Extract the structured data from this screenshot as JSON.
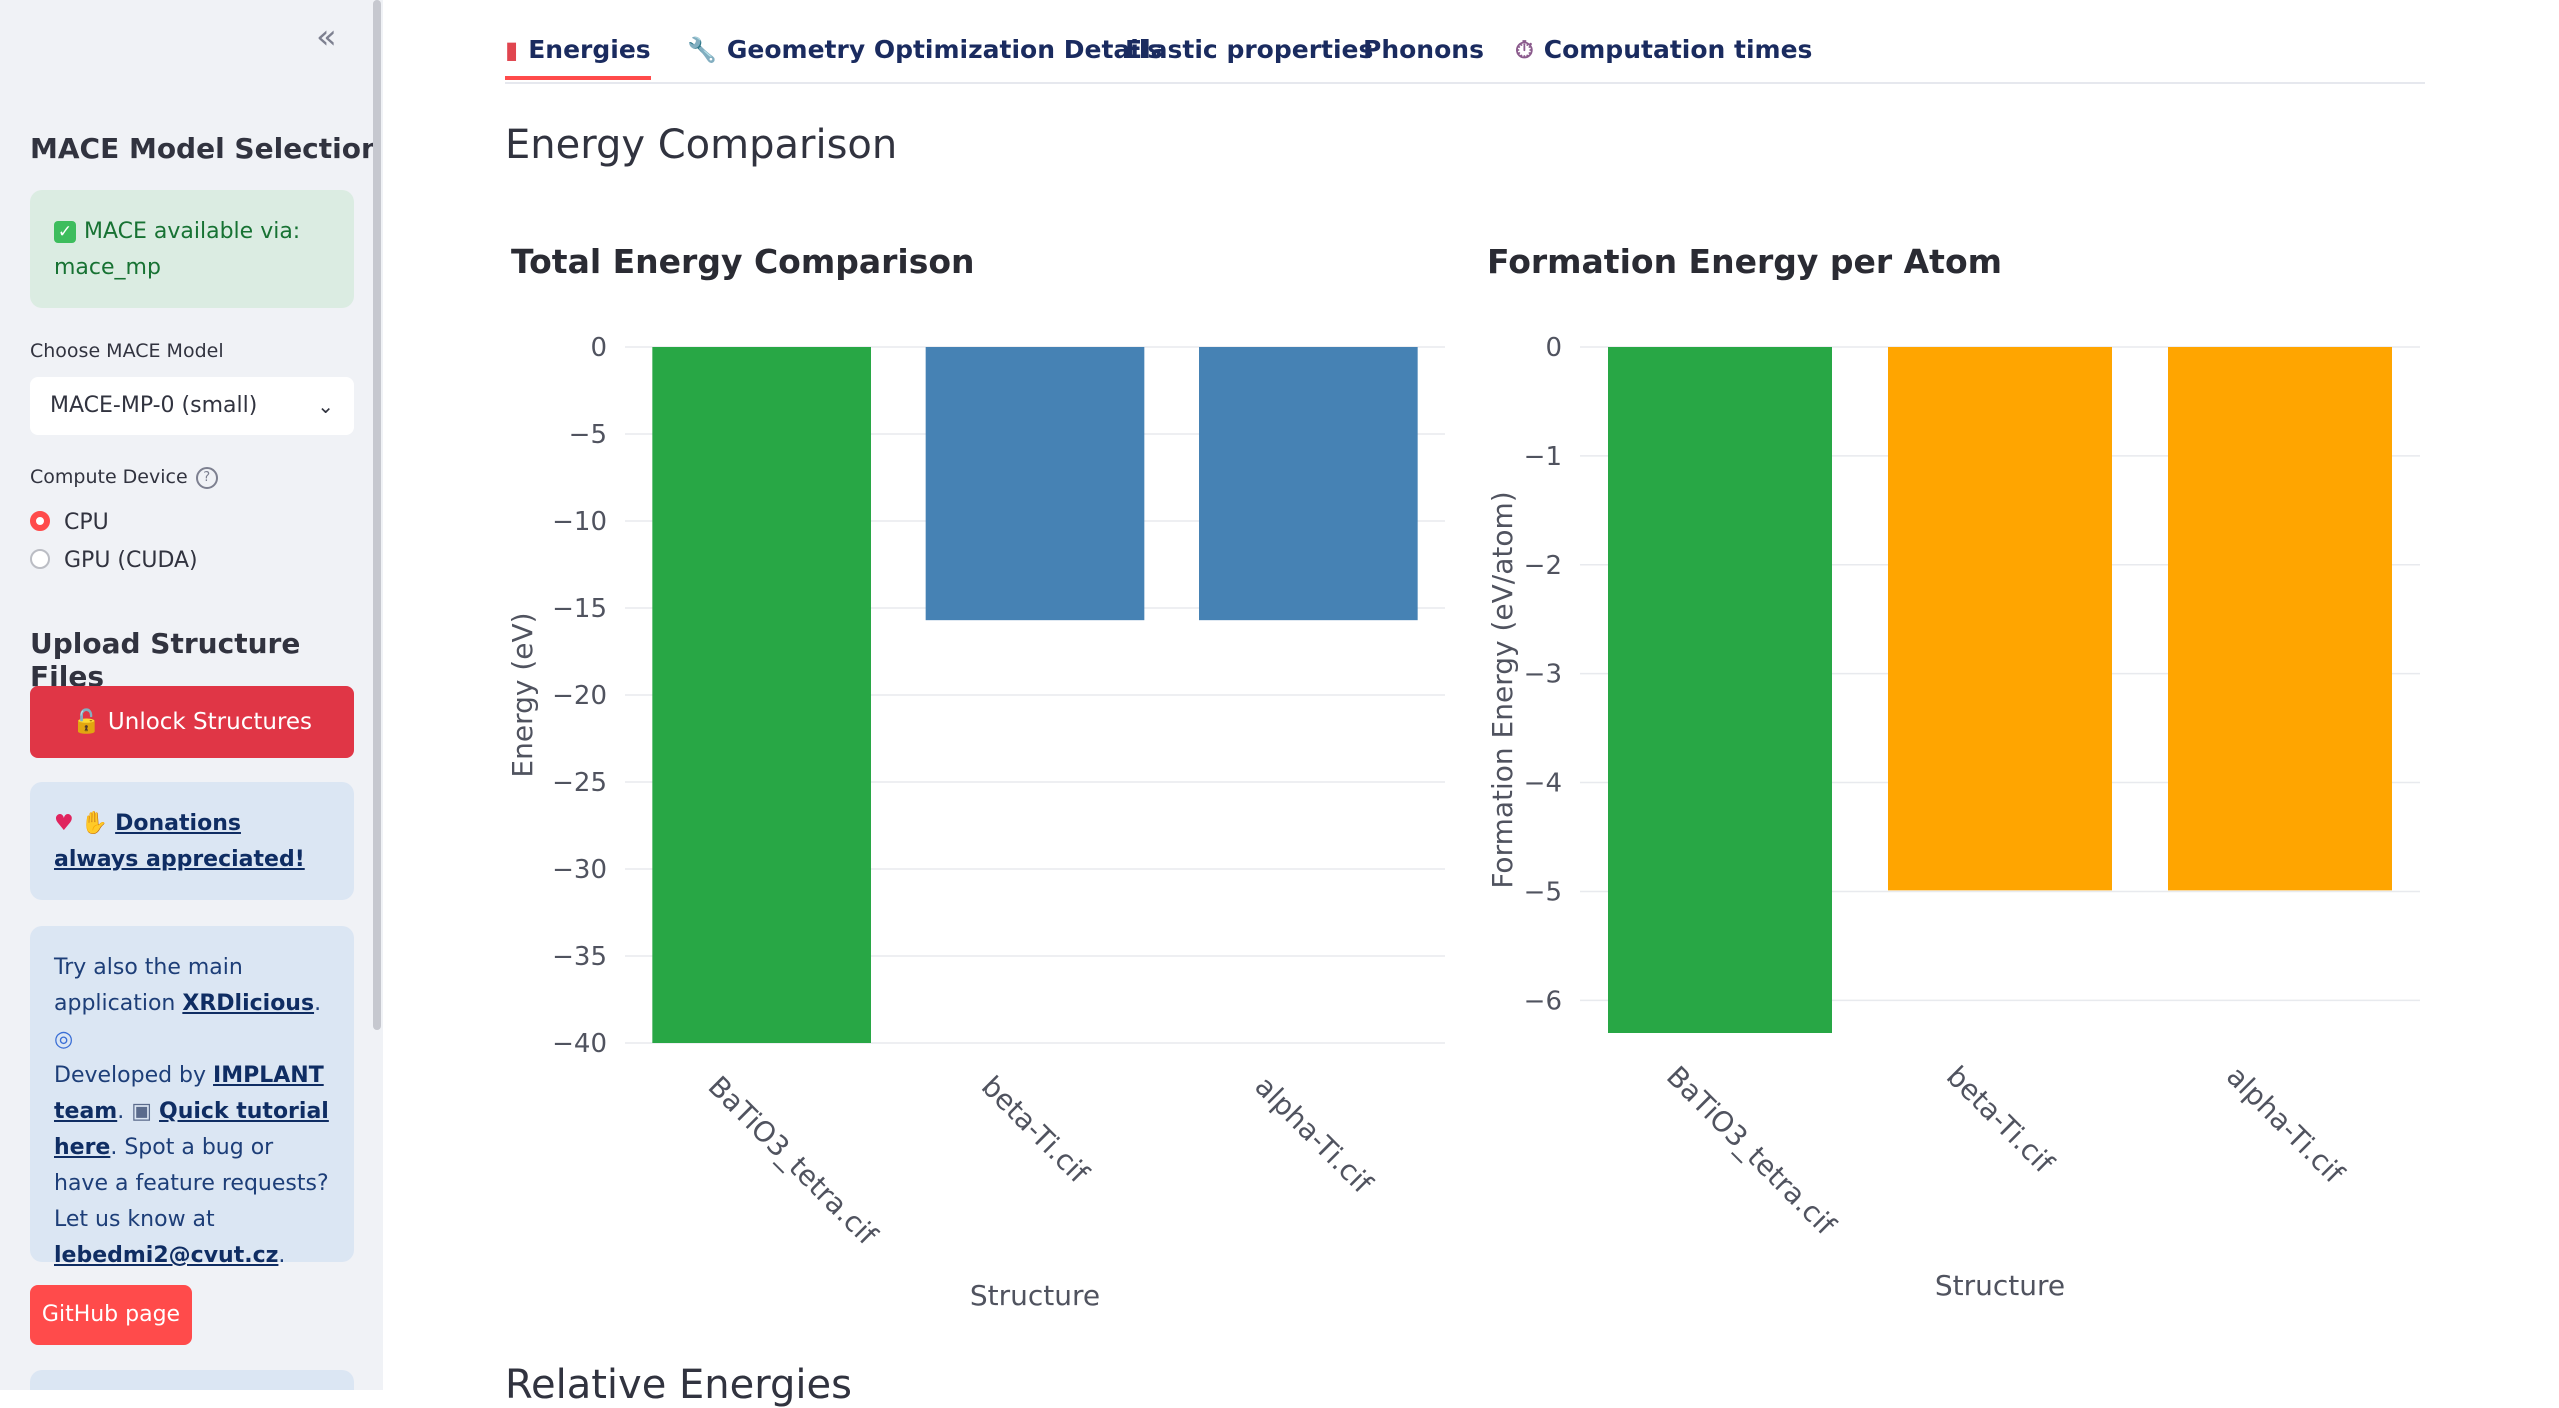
{
  "sidebar": {
    "collapse_icon": "double-chevron-left",
    "model_heading": "MACE Model Selection",
    "status_text": "MACE available via: mace_mp",
    "model_label": "Choose MACE Model",
    "model_value": "MACE-MP-0 (small)",
    "device_label": "Compute Device",
    "devices": [
      {
        "label": "CPU",
        "selected": true
      },
      {
        "label": "GPU (CUDA)",
        "selected": false
      }
    ],
    "upload_heading": "Upload Structure Files",
    "unlock_button": "Unlock Structures",
    "donations_link": "Donations always appreciated!",
    "info": {
      "t1": "Try also the main application ",
      "xrd_link": "XRDlicious",
      "t2": ". Developed by ",
      "implant_link": "IMPLANT team",
      "t3": ". ",
      "tutorial_link": "Quick tutorial here",
      "t4": ". Spot a bug or have a feature requests? Let us know at ",
      "email_link": "lebedmi2@cvut.cz",
      "t5": "."
    },
    "github_button": "GitHub page"
  },
  "tabs": [
    {
      "label": "Energies",
      "icon": "bar-chart-icon",
      "active": true
    },
    {
      "label": "Geometry Optimization Details",
      "icon": "wrench-icon",
      "active": false
    },
    {
      "label": "Elastic properties",
      "icon": "",
      "active": false
    },
    {
      "label": "Phonons",
      "icon": "",
      "active": false
    },
    {
      "label": "Computation times",
      "icon": "stopwatch-icon",
      "active": false
    }
  ],
  "section_title": "Energy Comparison",
  "next_section_title": "Relative Energies",
  "colors": {
    "green": "#28a745",
    "blue": "#4682b4",
    "orange": "#ffa500",
    "accent": "#ff4b4b"
  },
  "chart_data": [
    {
      "type": "bar",
      "title": "Total Energy Comparison",
      "xlabel": "Structure",
      "ylabel": "Energy (eV)",
      "categories": [
        "BaTiO3_tetra.cif",
        "beta-Ti.cif",
        "alpha-Ti.cif"
      ],
      "values": [
        -40.0,
        -15.7,
        -15.7
      ],
      "bar_colors": [
        "#28a745",
        "#4682b4",
        "#4682b4"
      ],
      "ylim": [
        -40,
        0
      ],
      "yticks": [
        0,
        -5,
        -10,
        -15,
        -20,
        -25,
        -30,
        -35,
        -40
      ],
      "grid": true
    },
    {
      "type": "bar",
      "title": "Formation Energy per Atom",
      "xlabel": "Structure",
      "ylabel": "Formation Energy (eV/atom)",
      "categories": [
        "BaTiO3_tetra.cif",
        "beta-Ti.cif",
        "alpha-Ti.cif"
      ],
      "values": [
        -6.3,
        -4.99,
        -4.99
      ],
      "bar_colors": [
        "#28a745",
        "#ffa500",
        "#ffa500"
      ],
      "ylim": [
        -6.3,
        0
      ],
      "yticks": [
        0,
        -1,
        -2,
        -3,
        -4,
        -5,
        -6
      ],
      "grid": true
    }
  ]
}
